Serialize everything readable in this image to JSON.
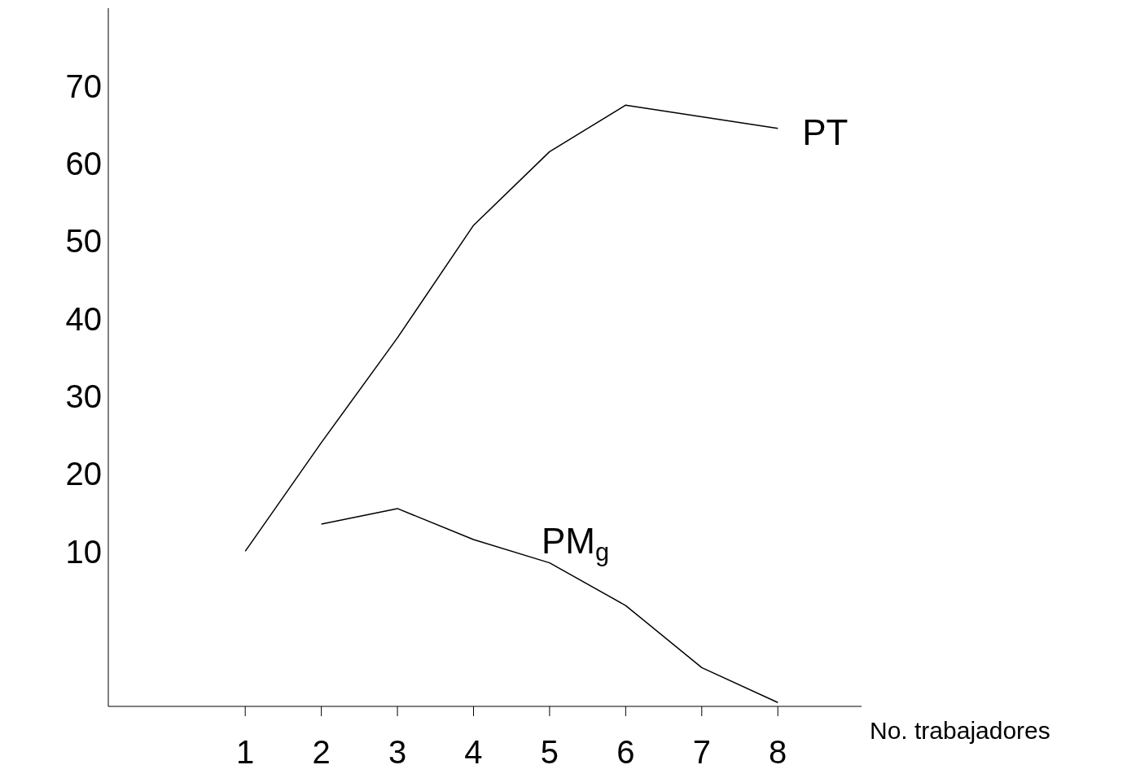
{
  "chart_data": {
    "type": "line",
    "xlabel": "No. trabajadores",
    "x": [
      1,
      2,
      3,
      4,
      5,
      6,
      7,
      8
    ],
    "series": [
      {
        "name": "PT",
        "color": "#000000",
        "values": [
          10,
          24,
          37.5,
          52,
          61.5,
          67.5,
          66,
          64.5
        ]
      },
      {
        "name": "PM$_{g}$",
        "color": "#000000",
        "values": [
          null,
          13.5,
          15.5,
          11.5,
          8.5,
          3,
          -5,
          -9.5
        ]
      }
    ],
    "xlim": [
      -0.8,
      9.1
    ],
    "xticks": [
      1,
      2,
      3,
      4,
      5,
      6,
      7,
      8
    ],
    "ylim": [
      -10,
      80
    ],
    "yticks": [
      10,
      20,
      30,
      40,
      50,
      60,
      70
    ],
    "marker": "none",
    "line_style": "solid"
  }
}
